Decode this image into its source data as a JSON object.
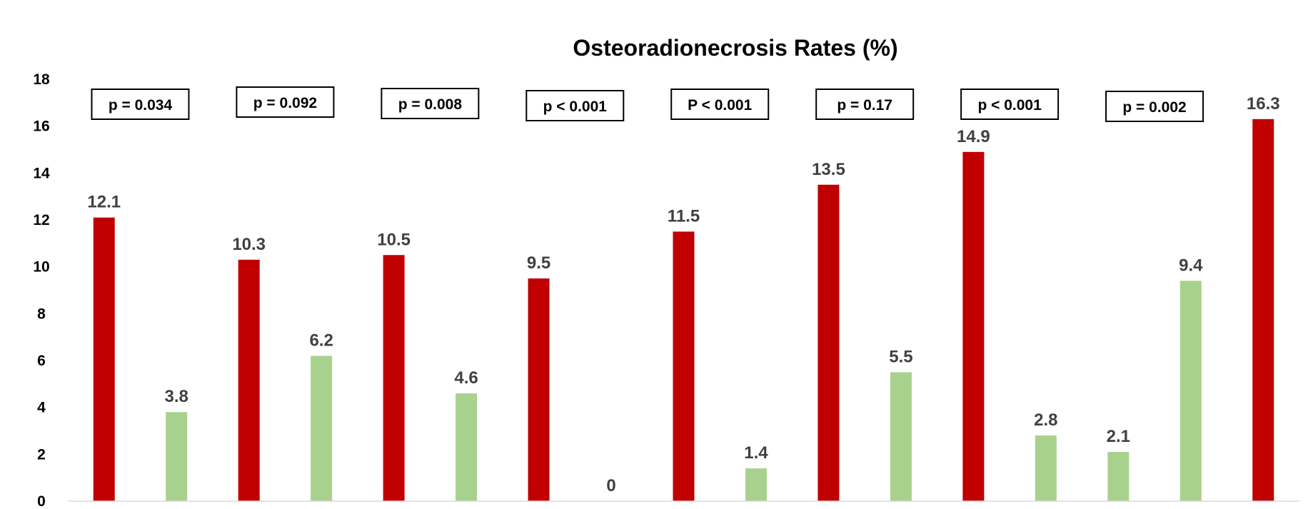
{
  "chart_data": {
    "type": "bar",
    "title": "Osteoradionecrosis Rates (%)",
    "xlabel": "",
    "ylabel": "",
    "ylim": [
      0,
      18
    ],
    "yticks": [
      0,
      2,
      4,
      6,
      8,
      10,
      12,
      14,
      16,
      18
    ],
    "grid": false,
    "legend": "none",
    "colors": {
      "red": "#c00000",
      "green": "#a9d18e"
    },
    "values": [
      12.1,
      3.8,
      10.3,
      6.2,
      10.5,
      4.6,
      9.5,
      0,
      11.5,
      1.4,
      13.5,
      5.5,
      14.9,
      2.8,
      2.1,
      9.4,
      16.3
    ],
    "bar_colors": [
      "red",
      "green",
      "red",
      "green",
      "red",
      "green",
      "red",
      "green",
      "red",
      "green",
      "red",
      "green",
      "red",
      "green",
      "green",
      "green",
      "red"
    ],
    "data_labels": [
      "12.1",
      "3.8",
      "10.3",
      "6.2",
      "10.5",
      "4.6",
      "9.5",
      "0",
      "11.5",
      "1.4",
      "13.5",
      "5.5",
      "14.9",
      "2.8",
      "2.1",
      "9.4",
      "16.3"
    ],
    "annotations": [
      "p = 0.034",
      "p = 0.092",
      "p = 0.008",
      "p < 0.001",
      "P < 0.001",
      "p = 0.17",
      "p < 0.001",
      "p = 0.002"
    ]
  }
}
